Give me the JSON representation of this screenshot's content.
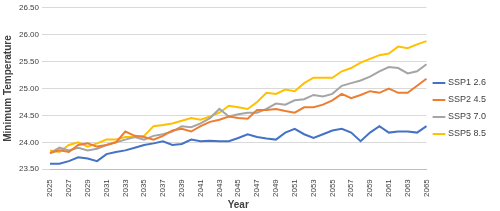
{
  "chart_data": {
    "type": "line",
    "x_label": "Year",
    "y_label": "Minimum Temperature",
    "categories": [
      "2025",
      null,
      "2027",
      null,
      "2029",
      null,
      "2031",
      null,
      "2033",
      null,
      "2035",
      null,
      "2037",
      null,
      "2039",
      null,
      "2041",
      null,
      "2043",
      null,
      "2045",
      null,
      "2047",
      null,
      "2049",
      null,
      "2051",
      null,
      "2053",
      null,
      "2055",
      null,
      "2057",
      null,
      "2059",
      null,
      "2061",
      null,
      "2063",
      null,
      "2065"
    ],
    "series": [
      {
        "name": "SSP1 2.6",
        "color": "#4472C4",
        "values": [
          23.6,
          23.6,
          23.65,
          23.72,
          23.7,
          23.65,
          23.78,
          23.82,
          23.85,
          23.9,
          23.95,
          23.98,
          24.02,
          23.95,
          23.97,
          24.05,
          24.02,
          24.03,
          24.02,
          24.02,
          24.08,
          24.15,
          24.1,
          24.07,
          24.05,
          24.18,
          24.25,
          24.15,
          24.08,
          24.15,
          24.22,
          24.25,
          24.18,
          24.02,
          24.18,
          24.3,
          24.18,
          24.2,
          24.2,
          24.18,
          24.3
        ]
      },
      {
        "name": "SSP2 4.5",
        "color": "#ED7D31",
        "values": [
          23.8,
          23.85,
          23.82,
          23.95,
          23.98,
          23.92,
          23.95,
          24.0,
          24.2,
          24.12,
          24.1,
          24.05,
          24.12,
          24.22,
          24.25,
          24.2,
          24.3,
          24.38,
          24.42,
          24.48,
          24.45,
          24.44,
          24.6,
          24.6,
          24.62,
          24.58,
          24.55,
          24.65,
          24.65,
          24.7,
          24.78,
          24.9,
          24.82,
          24.88,
          24.95,
          24.92,
          25.0,
          24.92,
          24.92,
          25.05,
          25.18
        ]
      },
      {
        "name": "SSP3 7.0",
        "color": "#A5A5A5",
        "values": [
          23.8,
          23.9,
          23.85,
          23.9,
          23.85,
          23.88,
          23.95,
          24.0,
          24.05,
          24.1,
          24.05,
          24.12,
          24.15,
          24.2,
          24.3,
          24.28,
          24.35,
          24.45,
          24.62,
          24.48,
          24.52,
          24.55,
          24.55,
          24.62,
          24.72,
          24.7,
          24.78,
          24.8,
          24.88,
          24.85,
          24.9,
          25.05,
          25.1,
          25.15,
          25.22,
          25.32,
          25.4,
          25.38,
          25.28,
          25.32,
          25.45
        ]
      },
      {
        "name": "SSP5 8.5",
        "color": "#FFC000",
        "values": [
          23.85,
          23.82,
          23.95,
          24.0,
          23.92,
          23.98,
          24.05,
          24.05,
          24.1,
          24.1,
          24.12,
          24.3,
          24.32,
          24.35,
          24.4,
          24.45,
          24.42,
          24.48,
          24.55,
          24.68,
          24.65,
          24.62,
          24.75,
          24.92,
          24.9,
          24.98,
          24.95,
          25.1,
          25.2,
          25.2,
          25.2,
          25.32,
          25.38,
          25.48,
          25.55,
          25.62,
          25.65,
          25.78,
          25.75,
          25.82,
          25.88
        ]
      }
    ],
    "ylim": [
      23.5,
      26.5
    ],
    "yticks": [
      {
        "value": 23.5,
        "label": "23.50"
      },
      {
        "value": 24,
        "label": "24.00"
      },
      {
        "value": 24.5,
        "label": "24.50"
      },
      {
        "value": 25,
        "label": "25.00"
      },
      {
        "value": 25.5,
        "label": "25.50"
      },
      {
        "value": 26,
        "label": "26.00"
      },
      {
        "value": 26.5,
        "label": "26.50"
      }
    ],
    "grid": true,
    "legend": "right",
    "marker": "none"
  }
}
